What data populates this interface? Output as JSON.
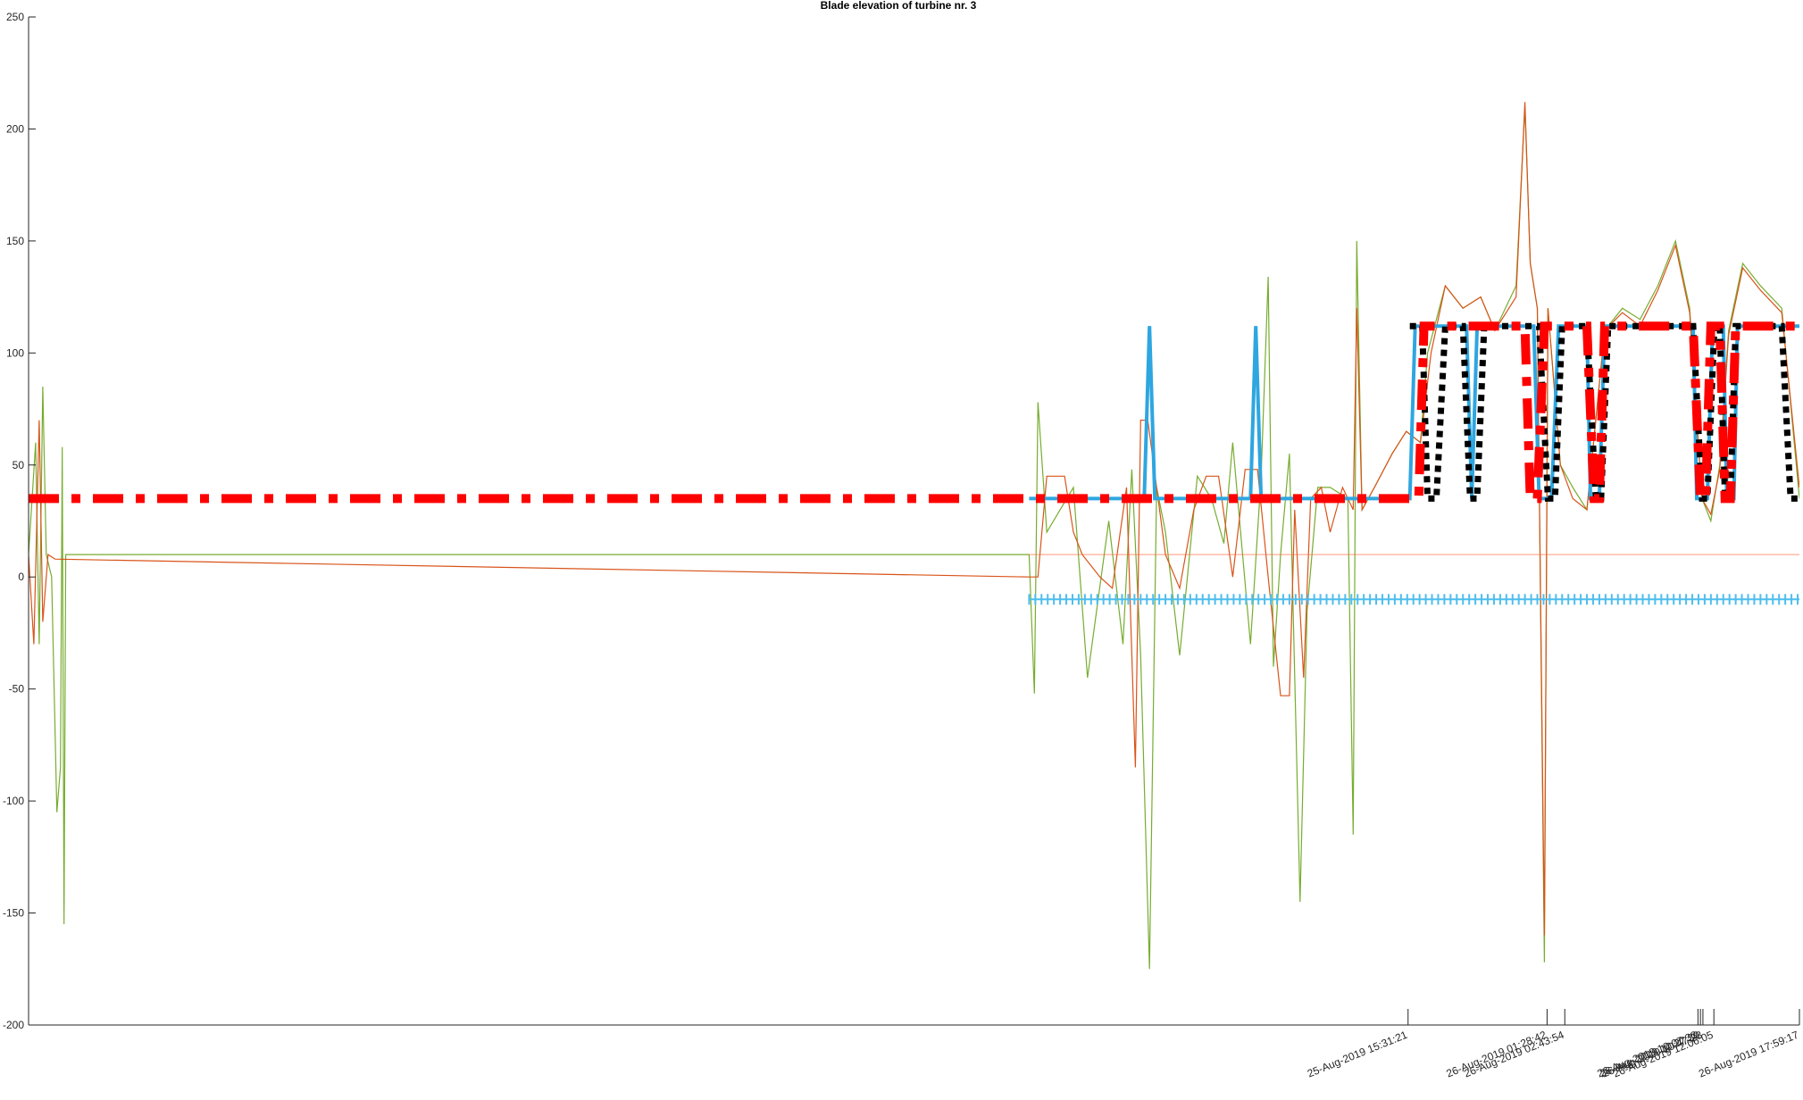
{
  "chart_data": {
    "type": "line",
    "title": "Blade elevation of turbine nr. 3",
    "xlabel": "",
    "ylabel": "",
    "ylim": [
      -200,
      250
    ],
    "yticks": [
      -200,
      -150,
      -100,
      -50,
      0,
      50,
      100,
      150,
      200,
      250
    ],
    "grid": false,
    "legend": "none",
    "xticks": [
      {
        "label": "25-Aug-2019 15:31:21",
        "t": 0.779
      },
      {
        "label": "26-Aug-2019 01:28:42",
        "t": 0.8575
      },
      {
        "label": "26-Aug-2019 02:43:54",
        "t": 0.8675
      },
      {
        "label": "26-Aug-2019 10:07:33",
        "t": 0.9427
      },
      {
        "label": "26-Aug-2019 10:27:30",
        "t": 0.9441
      },
      {
        "label": "26-Aug-2019 10:47:28",
        "t": 0.9455
      },
      {
        "label": "26-Aug-2019 12:06:05",
        "t": 0.9517
      },
      {
        "label": "26-Aug-2019 17:59:17",
        "t": 1.0
      }
    ],
    "series": [
      {
        "color": "#77AC30",
        "style": "thin",
        "points": [
          [
            0.0,
            10
          ],
          [
            0.004,
            60
          ],
          [
            0.006,
            -30
          ],
          [
            0.008,
            85
          ],
          [
            0.01,
            10
          ],
          [
            0.013,
            0
          ],
          [
            0.016,
            -105
          ],
          [
            0.018,
            -85
          ],
          [
            0.019,
            58
          ],
          [
            0.02,
            -155
          ],
          [
            0.021,
            10
          ],
          [
            0.565,
            10
          ],
          [
            0.568,
            -52
          ],
          [
            0.57,
            78
          ],
          [
            0.575,
            20
          ],
          [
            0.59,
            40
          ],
          [
            0.598,
            -45
          ],
          [
            0.61,
            25
          ],
          [
            0.618,
            -30
          ],
          [
            0.623,
            48
          ],
          [
            0.628,
            -35
          ],
          [
            0.633,
            -175
          ],
          [
            0.637,
            40
          ],
          [
            0.642,
            20
          ],
          [
            0.65,
            -35
          ],
          [
            0.66,
            45
          ],
          [
            0.668,
            35
          ],
          [
            0.675,
            15
          ],
          [
            0.68,
            60
          ],
          [
            0.69,
            -30
          ],
          [
            0.696,
            45
          ],
          [
            0.7,
            134
          ],
          [
            0.703,
            -40
          ],
          [
            0.707,
            10
          ],
          [
            0.712,
            55
          ],
          [
            0.718,
            -145
          ],
          [
            0.722,
            -15
          ],
          [
            0.728,
            40
          ],
          [
            0.735,
            40
          ],
          [
            0.745,
            35
          ],
          [
            0.748,
            -115
          ],
          [
            0.75,
            150
          ],
          [
            0.753,
            30
          ],
          [
            0.76,
            40
          ],
          [
            0.77,
            55
          ],
          [
            0.778,
            65
          ],
          [
            0.786,
            60
          ],
          [
            0.79,
            100
          ],
          [
            0.8,
            130
          ],
          [
            0.81,
            120
          ],
          [
            0.82,
            125
          ],
          [
            0.828,
            110
          ],
          [
            0.84,
            130
          ],
          [
            0.845,
            210
          ],
          [
            0.848,
            140
          ],
          [
            0.852,
            120
          ],
          [
            0.856,
            -172
          ],
          [
            0.858,
            120
          ],
          [
            0.865,
            50
          ],
          [
            0.872,
            40
          ],
          [
            0.88,
            30
          ],
          [
            0.89,
            110
          ],
          [
            0.9,
            120
          ],
          [
            0.91,
            115
          ],
          [
            0.92,
            130
          ],
          [
            0.93,
            150
          ],
          [
            0.938,
            120
          ],
          [
            0.945,
            35
          ],
          [
            0.95,
            25
          ],
          [
            0.955,
            50
          ],
          [
            0.96,
            110
          ],
          [
            0.968,
            140
          ],
          [
            0.978,
            130
          ],
          [
            0.99,
            120
          ],
          [
            1.0,
            35
          ]
        ]
      },
      {
        "color": "#D95319",
        "style": "thin",
        "points": [
          [
            0.0,
            10
          ],
          [
            0.003,
            -30
          ],
          [
            0.006,
            70
          ],
          [
            0.008,
            -20
          ],
          [
            0.011,
            10
          ],
          [
            0.015,
            8
          ],
          [
            0.565,
            0
          ],
          [
            0.57,
            0
          ],
          [
            0.575,
            45
          ],
          [
            0.585,
            45
          ],
          [
            0.59,
            20
          ],
          [
            0.595,
            10
          ],
          [
            0.605,
            0
          ],
          [
            0.612,
            -5
          ],
          [
            0.62,
            40
          ],
          [
            0.625,
            -85
          ],
          [
            0.628,
            70
          ],
          [
            0.632,
            70
          ],
          [
            0.637,
            40
          ],
          [
            0.642,
            10
          ],
          [
            0.65,
            -5
          ],
          [
            0.658,
            30
          ],
          [
            0.665,
            45
          ],
          [
            0.672,
            45
          ],
          [
            0.68,
            0
          ],
          [
            0.687,
            48
          ],
          [
            0.694,
            48
          ],
          [
            0.7,
            0
          ],
          [
            0.707,
            -53
          ],
          [
            0.712,
            -53
          ],
          [
            0.715,
            30
          ],
          [
            0.72,
            -45
          ],
          [
            0.724,
            35
          ],
          [
            0.73,
            40
          ],
          [
            0.735,
            20
          ],
          [
            0.742,
            40
          ],
          [
            0.748,
            30
          ],
          [
            0.75,
            120
          ],
          [
            0.753,
            30
          ],
          [
            0.76,
            40
          ],
          [
            0.77,
            55
          ],
          [
            0.778,
            65
          ],
          [
            0.786,
            60
          ],
          [
            0.792,
            100
          ],
          [
            0.8,
            130
          ],
          [
            0.81,
            120
          ],
          [
            0.82,
            125
          ],
          [
            0.828,
            110
          ],
          [
            0.84,
            125
          ],
          [
            0.845,
            212
          ],
          [
            0.848,
            140
          ],
          [
            0.852,
            120
          ],
          [
            0.856,
            -160
          ],
          [
            0.858,
            120
          ],
          [
            0.865,
            50
          ],
          [
            0.872,
            35
          ],
          [
            0.88,
            30
          ],
          [
            0.89,
            110
          ],
          [
            0.9,
            118
          ],
          [
            0.91,
            112
          ],
          [
            0.92,
            128
          ],
          [
            0.93,
            148
          ],
          [
            0.938,
            118
          ],
          [
            0.945,
            35
          ],
          [
            0.95,
            28
          ],
          [
            0.955,
            48
          ],
          [
            0.96,
            108
          ],
          [
            0.968,
            138
          ],
          [
            0.978,
            128
          ],
          [
            0.99,
            118
          ],
          [
            1.0,
            40
          ]
        ]
      },
      {
        "color": "#FF6B3D",
        "style": "faint",
        "points": [
          [
            0.565,
            10
          ],
          [
            0.58,
            10
          ],
          [
            0.6,
            10
          ],
          [
            0.7,
            10
          ],
          [
            0.75,
            10
          ],
          [
            0.78,
            10
          ],
          [
            0.85,
            10
          ],
          [
            0.9,
            10
          ],
          [
            0.95,
            10
          ],
          [
            1.0,
            10
          ]
        ]
      },
      {
        "color": "#4DBEEE",
        "style": "ticks",
        "points": [
          [
            0.565,
            -10
          ],
          [
            1.0,
            -10
          ]
        ]
      },
      {
        "color": "#2EA6E0",
        "style": "thick",
        "points": [
          [
            0.565,
            35
          ],
          [
            0.63,
            35
          ],
          [
            0.633,
            112
          ],
          [
            0.636,
            35
          ],
          [
            0.69,
            35
          ],
          [
            0.693,
            112
          ],
          [
            0.696,
            35
          ],
          [
            0.77,
            35
          ],
          [
            0.78,
            35
          ],
          [
            0.783,
            112
          ],
          [
            0.812,
            112
          ],
          [
            0.815,
            35
          ],
          [
            0.818,
            112
          ],
          [
            0.85,
            112
          ],
          [
            0.853,
            35
          ],
          [
            0.86,
            35
          ],
          [
            0.864,
            112
          ],
          [
            0.88,
            112
          ],
          [
            0.882,
            35
          ],
          [
            0.887,
            35
          ],
          [
            0.89,
            112
          ],
          [
            0.94,
            112
          ],
          [
            0.942,
            35
          ],
          [
            0.948,
            35
          ],
          [
            0.951,
            112
          ],
          [
            0.957,
            112
          ],
          [
            0.959,
            35
          ],
          [
            0.963,
            35
          ],
          [
            0.965,
            112
          ],
          [
            1.0,
            112
          ]
        ]
      },
      {
        "color": "#000000",
        "style": "dotted",
        "points": [
          [
            0.78,
            112
          ],
          [
            0.787,
            112
          ],
          [
            0.79,
            35
          ],
          [
            0.795,
            35
          ],
          [
            0.8,
            112
          ],
          [
            0.81,
            112
          ],
          [
            0.814,
            35
          ],
          [
            0.818,
            35
          ],
          [
            0.822,
            112
          ],
          [
            0.853,
            112
          ],
          [
            0.858,
            35
          ],
          [
            0.862,
            35
          ],
          [
            0.866,
            112
          ],
          [
            0.88,
            112
          ],
          [
            0.885,
            35
          ],
          [
            0.888,
            35
          ],
          [
            0.892,
            112
          ],
          [
            0.94,
            112
          ],
          [
            0.945,
            35
          ],
          [
            0.948,
            35
          ],
          [
            0.952,
            112
          ],
          [
            0.955,
            112
          ],
          [
            0.958,
            35
          ],
          [
            0.961,
            35
          ],
          [
            0.964,
            112
          ],
          [
            0.99,
            112
          ],
          [
            0.995,
            35
          ],
          [
            1.0,
            35
          ]
        ]
      },
      {
        "color": "#FF0000",
        "style": "dashdot",
        "points": [
          [
            0.0,
            35
          ],
          [
            0.78,
            35
          ],
          [
            0.785,
            35
          ],
          [
            0.788,
            112
          ],
          [
            0.845,
            112
          ],
          [
            0.848,
            35
          ],
          [
            0.852,
            35
          ],
          [
            0.856,
            112
          ],
          [
            0.88,
            112
          ],
          [
            0.884,
            35
          ],
          [
            0.887,
            35
          ],
          [
            0.89,
            112
          ],
          [
            0.94,
            112
          ],
          [
            0.944,
            35
          ],
          [
            0.947,
            35
          ],
          [
            0.95,
            112
          ],
          [
            0.955,
            112
          ],
          [
            0.958,
            35
          ],
          [
            0.961,
            35
          ],
          [
            0.964,
            112
          ],
          [
            1.0,
            112
          ]
        ]
      }
    ]
  }
}
